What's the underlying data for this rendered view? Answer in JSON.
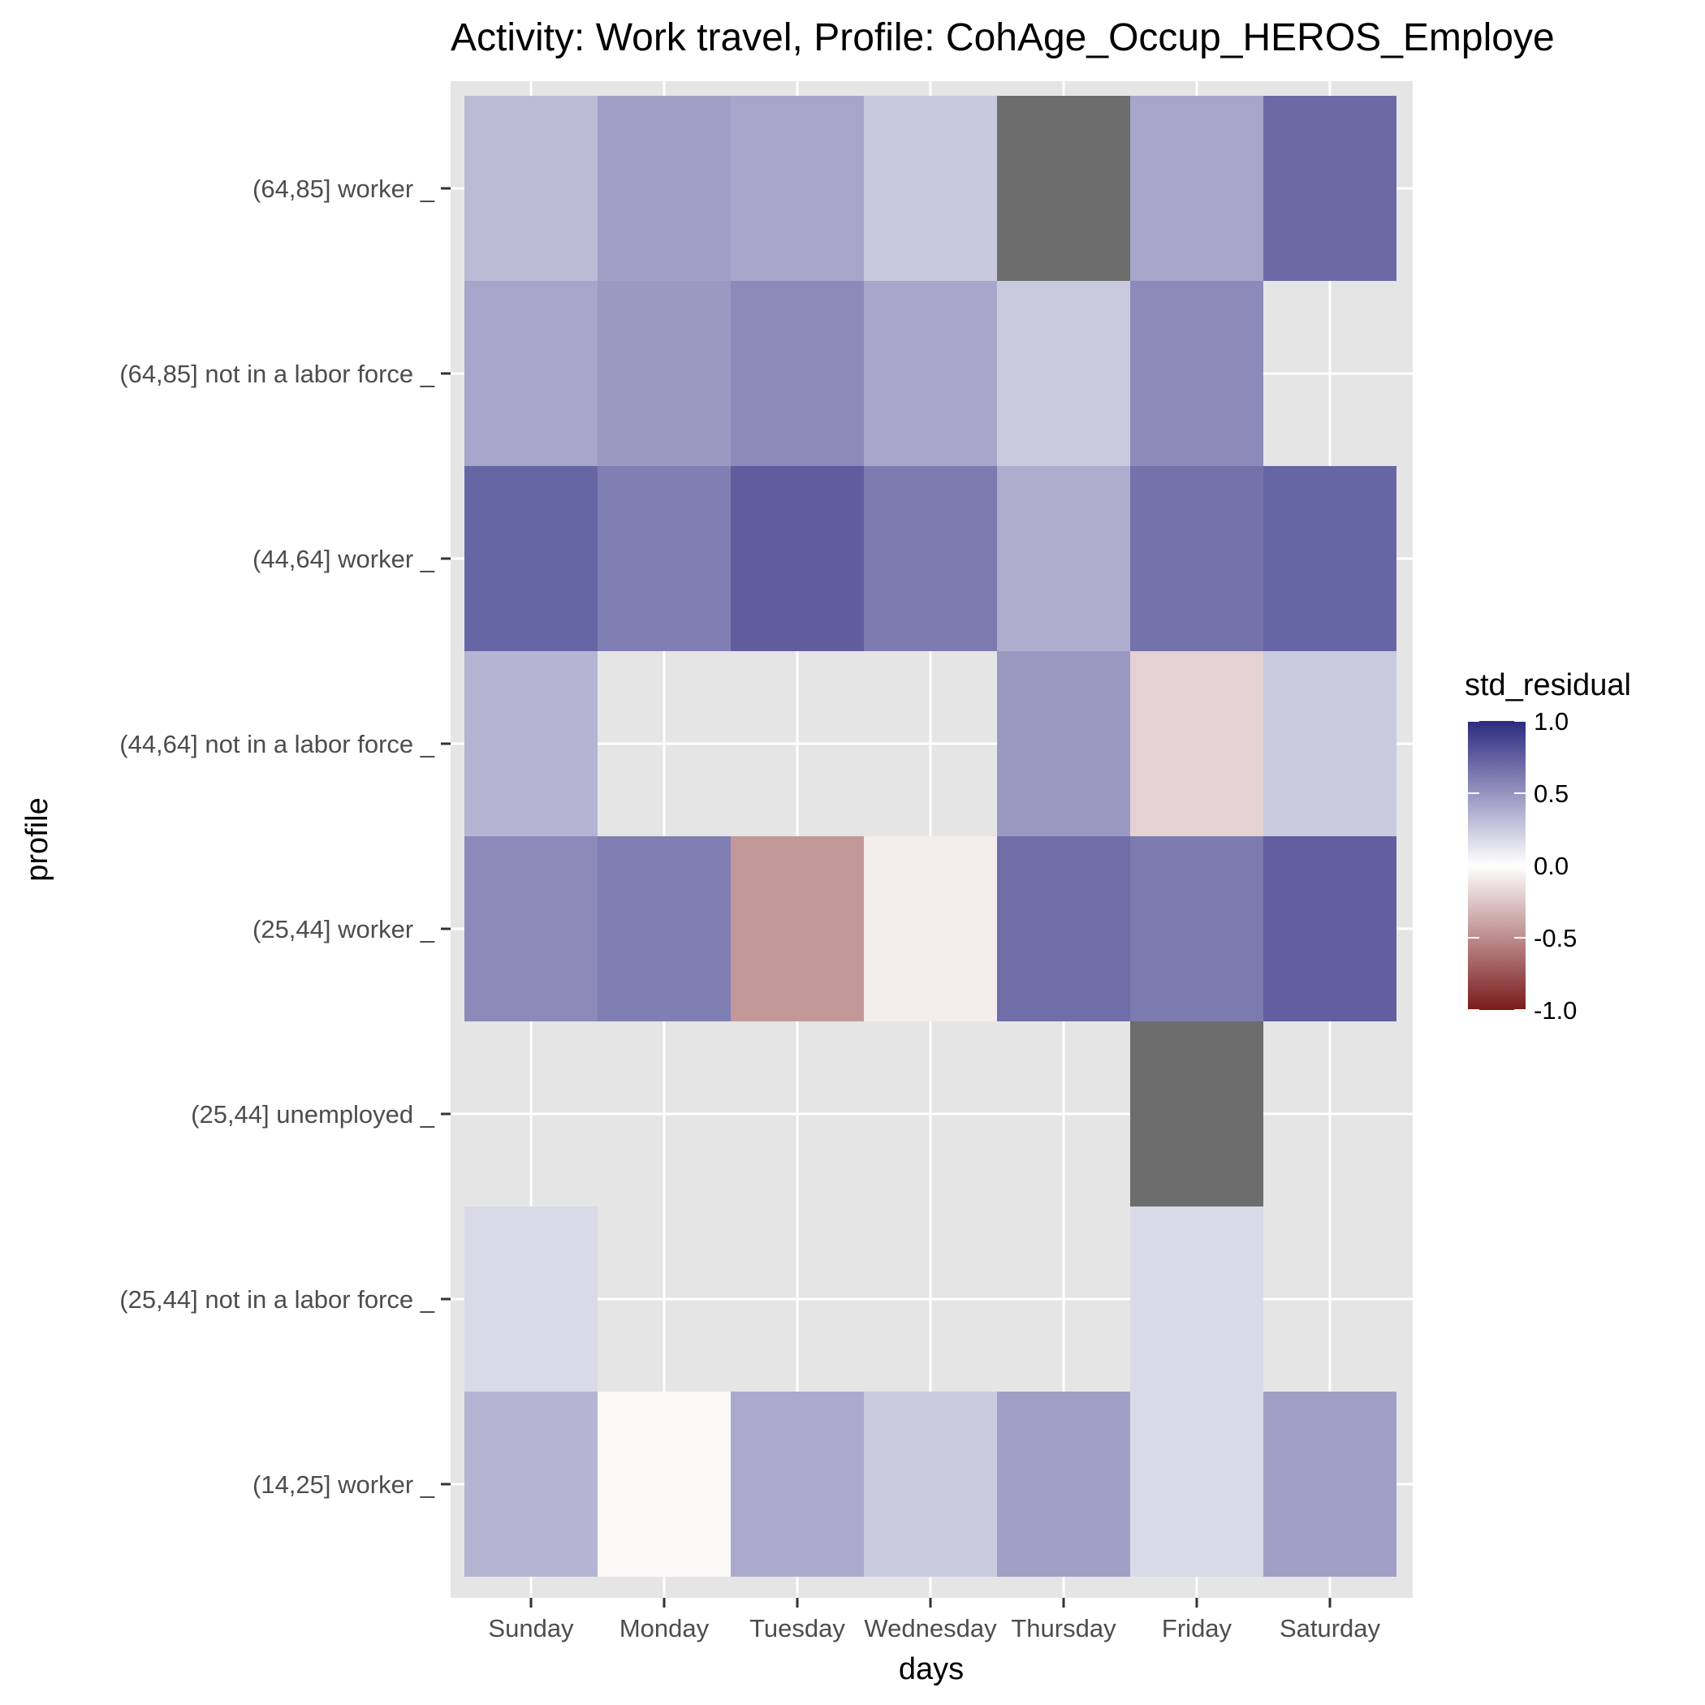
{
  "chart_data": {
    "type": "heatmap",
    "title": "Activity: Work travel, Profile: CohAge_Occup_HEROS_Employe",
    "xlabel": "days",
    "ylabel": "profile",
    "x_categories": [
      "Sunday",
      "Monday",
      "Tuesday",
      "Wednesday",
      "Thursday",
      "Friday",
      "Saturday"
    ],
    "y_categories": [
      "(14,25] worker _",
      "(25,44] not in a labor force _",
      "(25,44] unemployed _",
      "(25,44] worker _",
      "(44,64] not in a labor force _",
      "(44,64] worker _",
      "(64,85] not in a labor force _",
      "(64,85] worker _"
    ],
    "values": [
      [
        0.35,
        -0.03,
        0.4,
        0.25,
        0.45,
        0.18,
        0.45
      ],
      [
        0.18,
        null,
        null,
        null,
        null,
        0.18,
        null
      ],
      [
        null,
        null,
        null,
        null,
        null,
        "NA",
        null
      ],
      [
        0.55,
        0.6,
        -0.45,
        -0.08,
        0.68,
        0.62,
        0.75
      ],
      [
        0.35,
        null,
        null,
        null,
        0.48,
        -0.2,
        0.25
      ],
      [
        0.72,
        0.6,
        0.76,
        0.62,
        0.38,
        0.66,
        0.72
      ],
      [
        0.42,
        0.48,
        0.55,
        0.42,
        0.25,
        0.55,
        null
      ],
      [
        0.32,
        0.45,
        0.42,
        0.26,
        "NA",
        0.42,
        0.7
      ]
    ],
    "legend": {
      "title": "std_residual",
      "ticks": [
        "1.0",
        "0.5",
        "0.0",
        "-0.5",
        "-1.0"
      ],
      "limits": [
        -1.0,
        1.0
      ],
      "placement": "right"
    },
    "colors": {
      "high": "#2c2a80",
      "mid": "#ffffff",
      "low": "#7a1a1a",
      "na": "#6d6d6d",
      "panel": "#e5e5e5",
      "grid": "#ffffff"
    },
    "grid": true
  }
}
